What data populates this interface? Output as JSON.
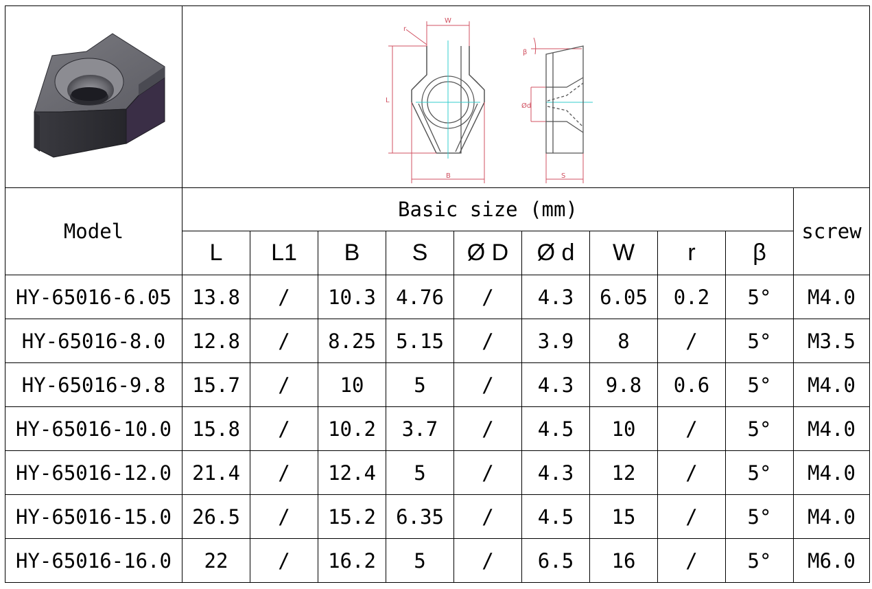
{
  "drawing": {
    "dim_labels": {
      "W": "W",
      "r": "r",
      "L": "L",
      "B": "B",
      "beta": "β",
      "d": "Ød",
      "S": "S"
    }
  },
  "table": {
    "model_header": "Model",
    "group_header": "Basic size (mm)",
    "screw_header": "screw",
    "columns": [
      "L",
      "L1",
      "B",
      "S",
      "Ø D",
      "Ø d",
      "W",
      "r",
      "β"
    ],
    "rows": [
      {
        "model": "HY-65016-6.05",
        "L": "13.8",
        "L1": "/",
        "B": "10.3",
        "S": "4.76",
        "D": "/",
        "d": "4.3",
        "W": "6.05",
        "r": "0.2",
        "beta": "5°",
        "screw": "M4.0"
      },
      {
        "model": "HY-65016-8.0",
        "L": "12.8",
        "L1": "/",
        "B": "8.25",
        "S": "5.15",
        "D": "/",
        "d": "3.9",
        "W": "8",
        "r": "/",
        "beta": "5°",
        "screw": "M3.5"
      },
      {
        "model": "HY-65016-9.8",
        "L": "15.7",
        "L1": "/",
        "B": "10",
        "S": "5",
        "D": "/",
        "d": "4.3",
        "W": "9.8",
        "r": "0.6",
        "beta": "5°",
        "screw": "M4.0"
      },
      {
        "model": "HY-65016-10.0",
        "L": "15.8",
        "L1": "/",
        "B": "10.2",
        "S": "3.7",
        "D": "/",
        "d": "4.5",
        "W": "10",
        "r": "/",
        "beta": "5°",
        "screw": "M4.0"
      },
      {
        "model": "HY-65016-12.0",
        "L": "21.4",
        "L1": "/",
        "B": "12.4",
        "S": "5",
        "D": "/",
        "d": "4.3",
        "W": "12",
        "r": "/",
        "beta": "5°",
        "screw": "M4.0"
      },
      {
        "model": "HY-65016-15.0",
        "L": "26.5",
        "L1": "/",
        "B": "15.2",
        "S": "6.35",
        "D": "/",
        "d": "4.5",
        "W": "15",
        "r": "/",
        "beta": "5°",
        "screw": "M4.0"
      },
      {
        "model": "HY-65016-16.0",
        "L": "22",
        "L1": "/",
        "B": "16.2",
        "S": "5",
        "D": "/",
        "d": "6.5",
        "W": "16",
        "r": "/",
        "beta": "5°",
        "screw": "M6.0"
      }
    ]
  }
}
